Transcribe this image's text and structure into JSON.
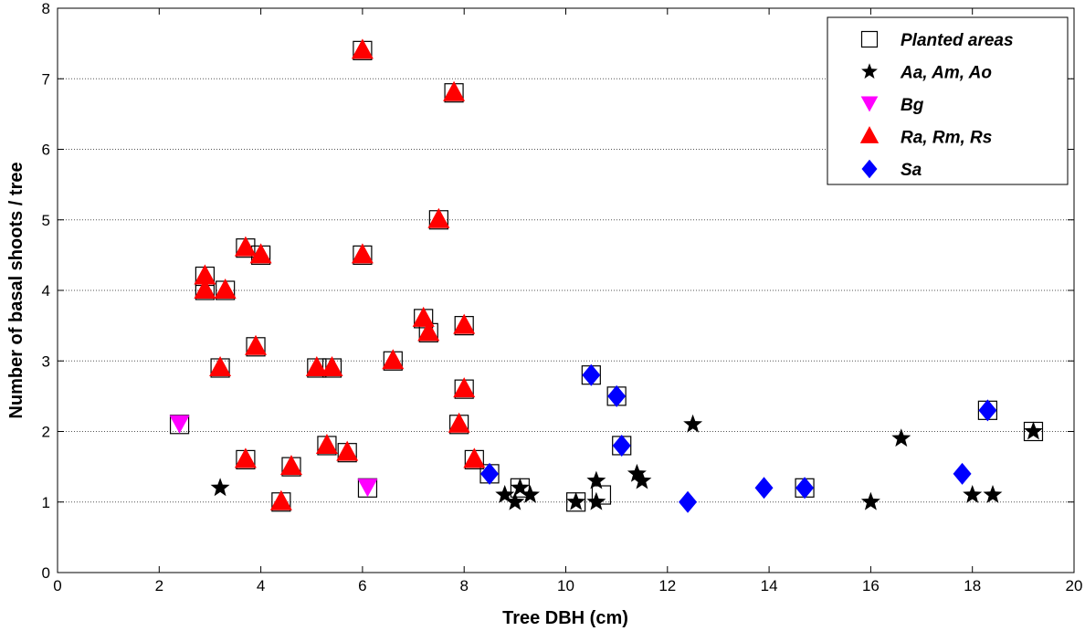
{
  "chart_data": {
    "type": "scatter",
    "xlabel": "Tree DBH (cm)",
    "ylabel": "Number of basal shoots / tree",
    "xlim": [
      0,
      20
    ],
    "ylim": [
      0,
      8
    ],
    "xticks": [
      0,
      2,
      4,
      6,
      8,
      10,
      12,
      14,
      16,
      18,
      20
    ],
    "yticks": [
      0,
      1,
      2,
      3,
      4,
      5,
      6,
      7,
      8
    ],
    "grid": "horizontal dotted",
    "legend_position": "top-right",
    "series": [
      {
        "name": "Planted areas",
        "marker": "open-square",
        "color": "#000000",
        "points": [
          [
            2.4,
            2.1
          ],
          [
            2.9,
            4.2
          ],
          [
            2.9,
            4.0
          ],
          [
            3.3,
            4.0
          ],
          [
            3.2,
            2.9
          ],
          [
            3.7,
            4.6
          ],
          [
            3.7,
            1.6
          ],
          [
            3.9,
            3.2
          ],
          [
            4.0,
            4.5
          ],
          [
            4.4,
            1.0
          ],
          [
            4.6,
            1.5
          ],
          [
            5.1,
            2.9
          ],
          [
            5.3,
            1.8
          ],
          [
            5.4,
            2.9
          ],
          [
            5.7,
            1.7
          ],
          [
            6.0,
            7.4
          ],
          [
            6.0,
            4.5
          ],
          [
            6.1,
            1.2
          ],
          [
            6.6,
            3.0
          ],
          [
            7.2,
            3.6
          ],
          [
            7.3,
            3.4
          ],
          [
            7.5,
            5.0
          ],
          [
            7.8,
            6.8
          ],
          [
            7.9,
            2.1
          ],
          [
            8.0,
            3.5
          ],
          [
            8.0,
            2.6
          ],
          [
            8.2,
            1.6
          ],
          [
            8.5,
            1.4
          ],
          [
            9.1,
            1.2
          ],
          [
            10.2,
            1.0
          ],
          [
            10.7,
            1.1
          ],
          [
            10.5,
            2.8
          ],
          [
            11.0,
            2.5
          ],
          [
            11.1,
            1.8
          ],
          [
            14.7,
            1.2
          ],
          [
            18.3,
            2.3
          ],
          [
            19.2,
            2.0
          ]
        ]
      },
      {
        "name": "Aa, Am, Ao",
        "marker": "star",
        "color": "#000000",
        "points": [
          [
            3.2,
            1.2
          ],
          [
            8.8,
            1.1
          ],
          [
            9.0,
            1.0
          ],
          [
            9.1,
            1.2
          ],
          [
            9.3,
            1.1
          ],
          [
            10.2,
            1.0
          ],
          [
            10.6,
            1.3
          ],
          [
            10.6,
            1.0
          ],
          [
            11.4,
            1.4
          ],
          [
            11.5,
            1.3
          ],
          [
            12.5,
            2.1
          ],
          [
            16.0,
            1.0
          ],
          [
            16.6,
            1.9
          ],
          [
            18.0,
            1.1
          ],
          [
            18.4,
            1.1
          ],
          [
            19.2,
            2.0
          ]
        ]
      },
      {
        "name": "Bg",
        "marker": "triangle-down",
        "color": "#ff00ff",
        "points": [
          [
            2.4,
            2.1
          ],
          [
            6.1,
            1.2
          ]
        ]
      },
      {
        "name": "Ra, Rm, Rs",
        "marker": "triangle-up",
        "color": "#ff0000",
        "points": [
          [
            2.9,
            4.2
          ],
          [
            2.9,
            4.0
          ],
          [
            3.3,
            4.0
          ],
          [
            3.2,
            2.9
          ],
          [
            3.7,
            4.6
          ],
          [
            3.7,
            1.6
          ],
          [
            3.9,
            3.2
          ],
          [
            4.0,
            4.5
          ],
          [
            4.4,
            1.0
          ],
          [
            4.6,
            1.5
          ],
          [
            5.1,
            2.9
          ],
          [
            5.3,
            1.8
          ],
          [
            5.4,
            2.9
          ],
          [
            5.7,
            1.7
          ],
          [
            6.0,
            7.4
          ],
          [
            6.0,
            4.5
          ],
          [
            6.6,
            3.0
          ],
          [
            7.2,
            3.6
          ],
          [
            7.3,
            3.4
          ],
          [
            7.5,
            5.0
          ],
          [
            7.8,
            6.8
          ],
          [
            7.9,
            2.1
          ],
          [
            8.0,
            3.5
          ],
          [
            8.0,
            2.6
          ],
          [
            8.2,
            1.6
          ]
        ]
      },
      {
        "name": "Sa",
        "marker": "diamond",
        "color": "#0000ff",
        "points": [
          [
            8.5,
            1.4
          ],
          [
            10.5,
            2.8
          ],
          [
            11.0,
            2.5
          ],
          [
            11.1,
            1.8
          ],
          [
            12.4,
            1.0
          ],
          [
            13.9,
            1.2
          ],
          [
            14.7,
            1.2
          ],
          [
            17.8,
            1.4
          ],
          [
            18.3,
            2.3
          ]
        ]
      }
    ]
  }
}
